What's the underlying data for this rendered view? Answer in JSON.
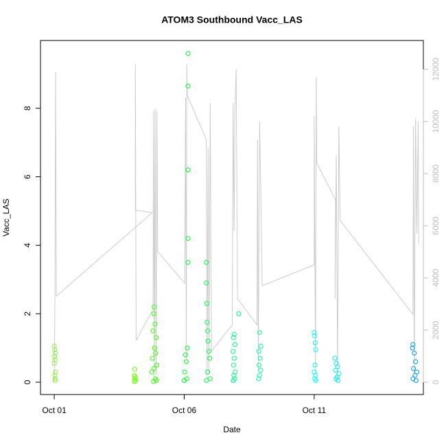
{
  "chart_data": {
    "type": "scatter",
    "title": "ATOM3 Southbound Vacc_LAS",
    "x_label": "Date",
    "y_label": "Vacc_LAS",
    "xlim": [
      0.47,
      15.2
    ],
    "xticks": [
      {
        "value": 1,
        "label": "Oct 01"
      },
      {
        "value": 6,
        "label": "Oct 06"
      },
      {
        "value": 11,
        "label": "Oct 11"
      }
    ],
    "ylim": [
      -0.36,
      9.98
    ],
    "yticks": [
      0,
      2,
      4,
      6,
      8
    ],
    "y2lim": [
      -474,
      13105
    ],
    "y2ticks": [
      0,
      2000,
      4000,
      6000,
      8000,
      10000,
      12000
    ],
    "y2_color": "#bebebe",
    "series": [
      {
        "type": "line",
        "axis": "y2",
        "color": "#cccccc",
        "x": [
          1.0,
          1.03,
          1.05,
          1.08,
          4.77,
          4.12,
          4.12,
          4.15,
          4.8,
          4.82,
          4.85,
          4.88,
          4.92,
          4.95,
          4.98,
          6.02,
          6.05,
          6.08,
          6.1,
          6.12,
          6.85,
          6.88,
          6.92,
          6.95,
          7.0,
          7.05,
          7.85,
          7.88,
          7.92,
          7.95,
          8.0,
          8.05,
          8.8,
          8.82,
          8.85,
          8.9,
          8.95,
          9.0,
          11.0,
          11.0,
          11.05,
          11.08,
          11.1,
          11.82,
          11.8,
          11.85,
          11.9,
          11.95,
          12.0,
          14.8,
          14.82,
          14.85,
          14.9,
          14.95,
          15.0,
          15.02
        ],
        "values": [
          50,
          3900,
          11900,
          3300,
          6500,
          6600,
          12200,
          1600,
          2800,
          10400,
          200,
          10500,
          300,
          10400,
          5000,
          3800,
          10900,
          900,
          12200,
          11000,
          9300,
          200,
          9000,
          300,
          10700,
          1200,
          2200,
          10700,
          5800,
          10500,
          12000,
          3200,
          2200,
          9300,
          400,
          10000,
          7000,
          3700,
          4500,
          10200,
          300,
          11700,
          8400,
          7000,
          3200,
          8700,
          300,
          9800,
          6200,
          2600,
          9800,
          200,
          10100,
          5700,
          10000,
          5300
        ]
      },
      {
        "color": "#8cf03c",
        "x": [
          1.0,
          1.02,
          1.04,
          1.01,
          1.03,
          1.0,
          1.05,
          1.02,
          1.04,
          1.03
        ],
        "values": [
          1.05,
          0.95,
          0.85,
          0.75,
          0.65,
          0.55,
          0.3,
          0.2,
          0.1,
          0.05
        ]
      },
      {
        "color": "#66ff00",
        "x": [
          4.1,
          4.08,
          4.12,
          4.1,
          4.13,
          4.09
        ],
        "values": [
          0.38,
          0.2,
          0.15,
          0.1,
          0.05,
          0.02
        ]
      },
      {
        "color": "#33ff00",
        "x": [
          4.85,
          4.83,
          4.88,
          4.8,
          4.92,
          4.86,
          4.9,
          4.78,
          4.95,
          4.84,
          4.75,
          4.89,
          4.93,
          4.82
        ],
        "values": [
          2.2,
          2.0,
          1.7,
          1.5,
          1.3,
          1.0,
          0.85,
          0.7,
          0.5,
          0.4,
          0.3,
          0.1,
          0.05,
          0.02
        ]
      },
      {
        "color": "#00ff20",
        "x": [
          6.15,
          6.15,
          6.15,
          6.15,
          6.15,
          6.12,
          6.05,
          6.08,
          6.02,
          6.1,
          6.0
        ],
        "values": [
          9.6,
          8.65,
          6.2,
          4.2,
          3.5,
          1.0,
          0.8,
          0.6,
          0.3,
          0.1,
          0.05
        ]
      },
      {
        "color": "#00ff40",
        "x": [
          6.85,
          6.85,
          6.87,
          6.88,
          6.9,
          6.92,
          6.95,
          6.98,
          6.9,
          7.0,
          6.86
        ],
        "values": [
          3.5,
          2.9,
          2.3,
          1.75,
          1.5,
          1.2,
          0.9,
          0.7,
          0.3,
          0.1,
          0.05
        ]
      },
      {
        "color": "#00ff80",
        "x": [
          8.1,
          7.92,
          7.9,
          7.95,
          7.88,
          7.93,
          7.9,
          7.96,
          7.91,
          7.94,
          7.89
        ],
        "values": [
          2.0,
          1.4,
          1.3,
          1.1,
          0.9,
          0.7,
          0.5,
          0.3,
          0.2,
          0.1,
          0.05
        ]
      },
      {
        "color": "#00ffa0",
        "x": [
          8.9,
          8.95,
          8.87,
          8.92,
          8.88,
          8.94,
          8.9,
          8.86
        ],
        "values": [
          1.45,
          1.05,
          0.9,
          0.7,
          0.5,
          0.35,
          0.2,
          0.1
        ]
      },
      {
        "color": "#00ffff",
        "x": [
          11.0,
          11.02,
          11.04,
          11.06,
          11.03,
          11.0,
          11.05,
          11.02,
          11.07
        ],
        "values": [
          1.45,
          1.35,
          1.15,
          0.95,
          0.5,
          0.3,
          0.2,
          0.1,
          0.05
        ]
      },
      {
        "color": "#00eeff",
        "x": [
          11.8,
          11.85,
          11.9,
          11.82,
          11.95,
          11.88,
          11.84,
          11.92
        ],
        "values": [
          0.7,
          0.55,
          0.45,
          0.35,
          0.25,
          0.15,
          0.1,
          0.05
        ]
      },
      {
        "color": "#0099ff",
        "x": [
          14.8,
          14.78,
          14.85,
          14.9,
          14.82,
          14.95,
          14.88,
          14.8,
          14.92
        ],
        "values": [
          1.1,
          1.0,
          0.85,
          0.6,
          0.4,
          0.3,
          0.2,
          0.1,
          0.05
        ]
      }
    ]
  }
}
